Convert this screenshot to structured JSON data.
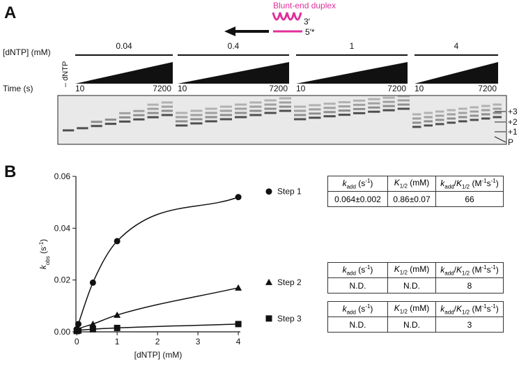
{
  "panel_a": {
    "label": "A",
    "duplex_label": "Blunt-end duplex",
    "strand_3": "3′",
    "strand_5": "5′*",
    "dntp_label": "[dNTP] (mM)",
    "concentrations": [
      "0.04",
      "0.4",
      "1",
      "4"
    ],
    "minus_dntp": "– dNTP",
    "time_label": "Time (s)",
    "time_start": "10",
    "time_end": "7200",
    "band_labels": [
      "+3",
      "+2",
      "+1",
      "P"
    ]
  },
  "panel_b_label": "B",
  "chart_data": {
    "type": "scatter",
    "x_label": "[dNTP] (mM)",
    "y_label": [
      {
        "text": "k",
        "format": "italic"
      },
      {
        "text": "obs",
        "format": "sub"
      },
      {
        "text": " (s"
      },
      {
        "text": "-1",
        "format": "sup"
      },
      {
        "text": ")"
      }
    ],
    "x": [
      0,
      0.04,
      0.4,
      1,
      4
    ],
    "series": [
      {
        "name": "Step 1",
        "color": "#111111",
        "marker": "circle",
        "values": [
          0.001,
          0.003,
          0.019,
          0.035,
          0.052
        ]
      },
      {
        "name": "Step 2",
        "color": "#111111",
        "marker": "triangle",
        "values": [
          0.0005,
          0.001,
          0.003,
          0.0065,
          0.017
        ]
      },
      {
        "name": "Step 3",
        "color": "#111111",
        "marker": "square",
        "values": [
          0.0003,
          0.0005,
          0.001,
          0.0015,
          0.003
        ]
      }
    ],
    "xlim": [
      -0.02,
      4.05
    ],
    "xticks": [
      0,
      1,
      2,
      3,
      4
    ],
    "ylim": [
      0,
      0.06
    ],
    "yticks": [
      {
        "value": 0,
        "label": "0.00"
      },
      0.02,
      0.04,
      0.06
    ],
    "grid": false,
    "fit_curves": true
  },
  "table_header": [
    [
      {
        "text": "k",
        "format": "italic"
      },
      {
        "text": "add",
        "format": "sub"
      },
      {
        "text": " (s"
      },
      {
        "text": "-1",
        "format": "sup"
      },
      {
        "text": ")"
      }
    ],
    [
      {
        "text": "K",
        "format": "italic"
      },
      {
        "text": "1/2",
        "format": "sub"
      },
      {
        "text": " (mM)"
      }
    ],
    [
      {
        "text": "k",
        "format": "italic"
      },
      {
        "text": "add",
        "format": "sub"
      },
      {
        "text": "/"
      },
      {
        "text": "K",
        "format": "italic"
      },
      {
        "text": "1/2",
        "format": "sub"
      },
      {
        "text": " (M"
      },
      {
        "text": "-1",
        "format": "sup"
      },
      {
        "text": "s"
      },
      {
        "text": "-1",
        "format": "sup"
      },
      {
        "text": ")"
      }
    ]
  ],
  "tables": [
    [
      "0.064±0.002",
      "0.86±0.07",
      66
    ],
    [
      "N.D.",
      "N.D.",
      8
    ],
    [
      "N.D.",
      "N.D.",
      3
    ]
  ]
}
